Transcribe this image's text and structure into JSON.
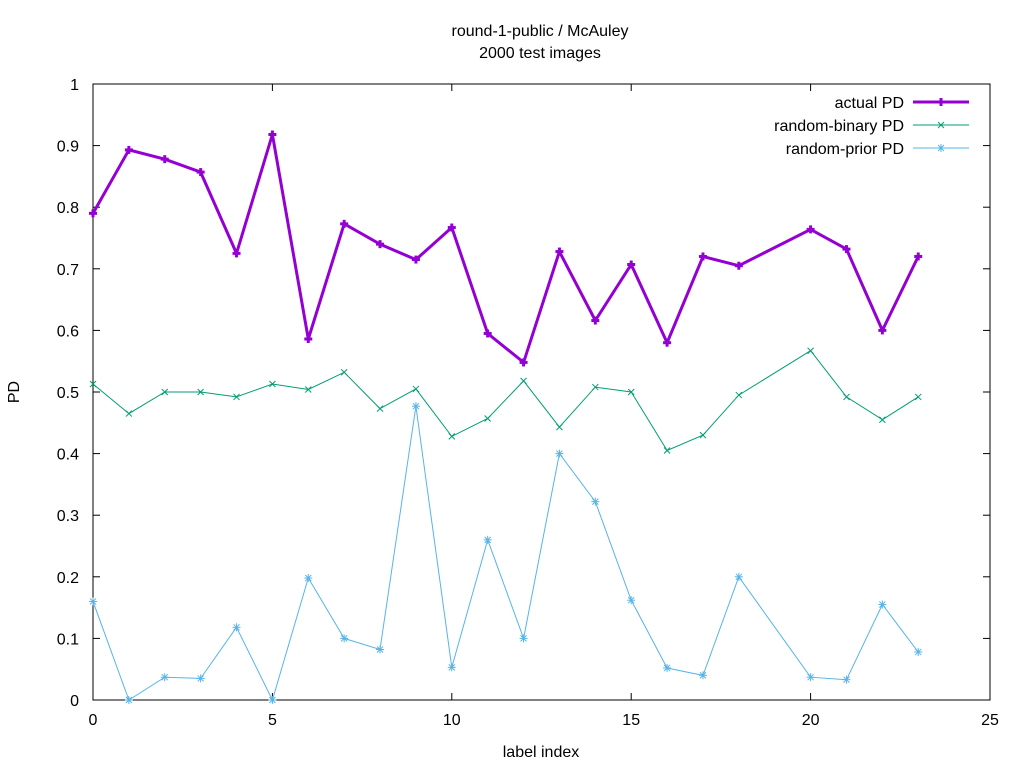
{
  "chart_data": {
    "type": "line",
    "title": "round-1-public / McAuley",
    "subtitle": "2000 test images",
    "xlabel": "label index",
    "ylabel": "PD",
    "xlim": [
      0,
      25
    ],
    "ylim": [
      0,
      1
    ],
    "xticks": [
      0,
      5,
      10,
      15,
      20,
      25
    ],
    "yticks": [
      0,
      0.1,
      0.2,
      0.3,
      0.4,
      0.5,
      0.6,
      0.7,
      0.8,
      0.9,
      1
    ],
    "legend_position": "top-right",
    "grid": false,
    "x": [
      0,
      1,
      2,
      3,
      4,
      5,
      6,
      7,
      8,
      9,
      10,
      11,
      12,
      13,
      14,
      15,
      16,
      17,
      18,
      20,
      21,
      22,
      23
    ],
    "series": [
      {
        "name": "actual PD",
        "color": "#9400d3",
        "marker": "plus",
        "values": [
          0.79,
          0.893,
          0.878,
          0.857,
          0.725,
          0.918,
          0.586,
          0.773,
          0.74,
          0.715,
          0.767,
          0.595,
          0.548,
          0.728,
          0.616,
          0.707,
          0.58,
          0.72,
          0.705,
          0.764,
          0.732,
          0.6,
          0.72
        ]
      },
      {
        "name": "random-binary PD",
        "color": "#009e73",
        "marker": "cross",
        "values": [
          0.513,
          0.465,
          0.5,
          0.5,
          0.492,
          0.513,
          0.504,
          0.532,
          0.473,
          0.505,
          0.428,
          0.457,
          0.518,
          0.443,
          0.508,
          0.5,
          0.405,
          0.43,
          0.495,
          0.567,
          0.492,
          0.455,
          0.492
        ]
      },
      {
        "name": "random-prior PD",
        "color": "#56b4e9",
        "marker": "star",
        "values": [
          0.16,
          0.0,
          0.037,
          0.035,
          0.118,
          0.0,
          0.198,
          0.1,
          0.082,
          0.477,
          0.053,
          0.26,
          0.1,
          0.4,
          0.322,
          0.162,
          0.052,
          0.04,
          0.2,
          0.037,
          0.033,
          0.155,
          0.078
        ]
      }
    ]
  }
}
